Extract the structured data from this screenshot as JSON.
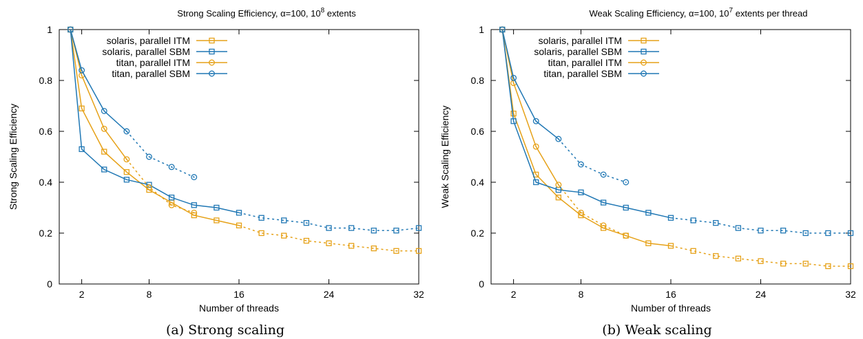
{
  "colors": {
    "itm": "#e6a117",
    "sbm": "#1f77b4",
    "axis": "#000000"
  },
  "chart_data": [
    {
      "type": "line",
      "title": "Strong Scaling Efficiency, α=100, 10",
      "title_sup": "8",
      "title_tail": " extents",
      "xlabel": "Number of threads",
      "ylabel": "Strong Scaling Efficiency",
      "caption": "(a) Strong scaling",
      "xlim": [
        0,
        32
      ],
      "ylim": [
        0,
        1
      ],
      "xticks": [
        2,
        8,
        16,
        24,
        32
      ],
      "yticks": [
        0,
        0.2,
        0.4,
        0.6,
        0.8,
        1
      ],
      "legend_position": "top-center",
      "grid": false,
      "series": [
        {
          "name": "solaris, parallel ITM",
          "color": "itm",
          "marker": "square",
          "x": [
            1,
            2,
            4,
            6,
            8,
            10,
            12,
            14,
            16,
            18,
            20,
            22,
            24,
            26,
            28,
            30,
            32
          ],
          "y": [
            1,
            0.69,
            0.52,
            0.44,
            0.37,
            0.32,
            0.27,
            0.25,
            0.23,
            0.2,
            0.19,
            0.17,
            0.16,
            0.15,
            0.14,
            0.13,
            0.13
          ],
          "solid_until_x": 16
        },
        {
          "name": "solaris, parallel SBM",
          "color": "sbm",
          "marker": "square",
          "x": [
            1,
            2,
            4,
            6,
            8,
            10,
            12,
            14,
            16,
            18,
            20,
            22,
            24,
            26,
            28,
            30,
            32
          ],
          "y": [
            1,
            0.53,
            0.45,
            0.41,
            0.39,
            0.34,
            0.31,
            0.3,
            0.28,
            0.26,
            0.25,
            0.24,
            0.22,
            0.22,
            0.21,
            0.21,
            0.22
          ],
          "solid_until_x": 16
        },
        {
          "name": "titan, parallel ITM",
          "color": "itm",
          "marker": "circle",
          "x": [
            1,
            2,
            4,
            6,
            8,
            10,
            12
          ],
          "y": [
            1,
            0.82,
            0.61,
            0.49,
            0.38,
            0.31,
            0.28
          ],
          "solid_until_x": 6
        },
        {
          "name": "titan, parallel SBM",
          "color": "sbm",
          "marker": "circle",
          "x": [
            1,
            2,
            4,
            6,
            8,
            10,
            12
          ],
          "y": [
            1,
            0.84,
            0.68,
            0.6,
            0.5,
            0.46,
            0.42
          ],
          "solid_until_x": 6
        }
      ]
    },
    {
      "type": "line",
      "title": "Weak Scaling Efficiency, α=100, 10",
      "title_sup": "7",
      "title_tail": " extents per thread",
      "xlabel": "Number of threads",
      "ylabel": "Weak Scaling Efficiency",
      "caption": "(b) Weak scaling",
      "xlim": [
        0,
        32
      ],
      "ylim": [
        0,
        1
      ],
      "xticks": [
        2,
        8,
        16,
        24,
        32
      ],
      "yticks": [
        0,
        0.2,
        0.4,
        0.6,
        0.8,
        1
      ],
      "legend_position": "top-center",
      "grid": false,
      "series": [
        {
          "name": "solaris, parallel ITM",
          "color": "itm",
          "marker": "square",
          "x": [
            1,
            2,
            4,
            6,
            8,
            10,
            12,
            14,
            16,
            18,
            20,
            22,
            24,
            26,
            28,
            30,
            32
          ],
          "y": [
            1,
            0.67,
            0.43,
            0.34,
            0.27,
            0.22,
            0.19,
            0.16,
            0.15,
            0.13,
            0.11,
            0.1,
            0.09,
            0.08,
            0.08,
            0.07,
            0.07
          ],
          "solid_until_x": 16
        },
        {
          "name": "solaris, parallel SBM",
          "color": "sbm",
          "marker": "square",
          "x": [
            1,
            2,
            4,
            6,
            8,
            10,
            12,
            14,
            16,
            18,
            20,
            22,
            24,
            26,
            28,
            30,
            32
          ],
          "y": [
            1,
            0.64,
            0.4,
            0.37,
            0.36,
            0.32,
            0.3,
            0.28,
            0.26,
            0.25,
            0.24,
            0.22,
            0.21,
            0.21,
            0.2,
            0.2,
            0.2
          ],
          "solid_until_x": 16
        },
        {
          "name": "titan, parallel ITM",
          "color": "itm",
          "marker": "circle",
          "x": [
            1,
            2,
            4,
            6,
            8,
            10,
            12
          ],
          "y": [
            1,
            0.79,
            0.54,
            0.39,
            0.28,
            0.23,
            0.19
          ],
          "solid_until_x": 6
        },
        {
          "name": "titan, parallel SBM",
          "color": "sbm",
          "marker": "circle",
          "x": [
            1,
            2,
            4,
            6,
            8,
            10,
            12
          ],
          "y": [
            1,
            0.81,
            0.64,
            0.57,
            0.47,
            0.43,
            0.4
          ],
          "solid_until_x": 6
        }
      ]
    }
  ]
}
